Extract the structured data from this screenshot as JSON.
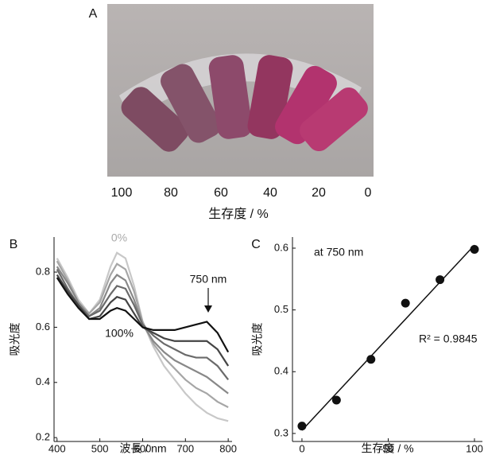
{
  "panel_a": {
    "label": "A",
    "tick_labels": [
      "100",
      "80",
      "60",
      "40",
      "20",
      "0"
    ],
    "xlabel": "生存度 / %"
  },
  "chart_data": [
    {
      "type": "line",
      "panel_label": "B",
      "xlabel": "波長 / nm",
      "ylabel": "吸光度",
      "annotations": [
        "0%",
        "100%",
        "750 nm"
      ],
      "x": [
        400,
        425,
        450,
        475,
        500,
        525,
        540,
        560,
        580,
        600,
        625,
        650,
        675,
        700,
        725,
        750,
        775,
        800
      ],
      "series": [
        {
          "color": "#c8c8c8",
          "values": [
            0.85,
            0.78,
            0.7,
            0.65,
            0.7,
            0.82,
            0.87,
            0.85,
            0.75,
            0.62,
            0.53,
            0.46,
            0.41,
            0.36,
            0.32,
            0.29,
            0.27,
            0.26
          ]
        },
        {
          "color": "#a6a6a6",
          "values": [
            0.84,
            0.77,
            0.69,
            0.65,
            0.69,
            0.79,
            0.83,
            0.81,
            0.73,
            0.62,
            0.54,
            0.49,
            0.45,
            0.41,
            0.38,
            0.36,
            0.33,
            0.31
          ]
        },
        {
          "color": "#888888",
          "values": [
            0.82,
            0.76,
            0.69,
            0.64,
            0.67,
            0.76,
            0.79,
            0.77,
            0.7,
            0.61,
            0.55,
            0.51,
            0.48,
            0.46,
            0.44,
            0.42,
            0.39,
            0.36
          ]
        },
        {
          "color": "#6a6a6a",
          "values": [
            0.81,
            0.74,
            0.68,
            0.64,
            0.66,
            0.72,
            0.75,
            0.74,
            0.68,
            0.61,
            0.57,
            0.54,
            0.52,
            0.5,
            0.49,
            0.49,
            0.46,
            0.41
          ]
        },
        {
          "color": "#444444",
          "values": [
            0.79,
            0.73,
            0.68,
            0.63,
            0.64,
            0.69,
            0.71,
            0.7,
            0.65,
            0.6,
            0.58,
            0.56,
            0.55,
            0.55,
            0.55,
            0.55,
            0.52,
            0.46
          ]
        },
        {
          "color": "#111111",
          "values": [
            0.78,
            0.72,
            0.67,
            0.63,
            0.63,
            0.66,
            0.67,
            0.66,
            0.63,
            0.6,
            0.59,
            0.59,
            0.59,
            0.6,
            0.61,
            0.62,
            0.58,
            0.51
          ]
        }
      ],
      "xlim": [
        393,
        809
      ],
      "ylim": [
        0.186,
        0.927
      ],
      "xticks": [
        400,
        500,
        600,
        700,
        800
      ],
      "yticks": [
        0.2,
        0.4,
        0.6,
        0.8
      ]
    },
    {
      "type": "scatter",
      "panel_label": "C",
      "xlabel": "生存度 / %",
      "ylabel": "吸光度",
      "annotations": [
        "at 750 nm",
        "R² = 0.9845"
      ],
      "x": [
        0,
        20,
        40,
        60,
        80,
        100
      ],
      "series": [
        {
          "color": "#111111",
          "values": [
            0.312,
            0.354,
            0.42,
            0.511,
            0.549,
            0.598
          ]
        }
      ],
      "fit_line": {
        "x": [
          0,
          100
        ],
        "y": [
          0.305,
          0.605
        ]
      },
      "xlim": [
        -5.5,
        104.6
      ],
      "ylim": [
        0.287,
        0.618
      ],
      "xticks": [
        0,
        50,
        100
      ],
      "yticks": [
        0.3,
        0.4,
        0.5,
        0.6
      ]
    }
  ]
}
